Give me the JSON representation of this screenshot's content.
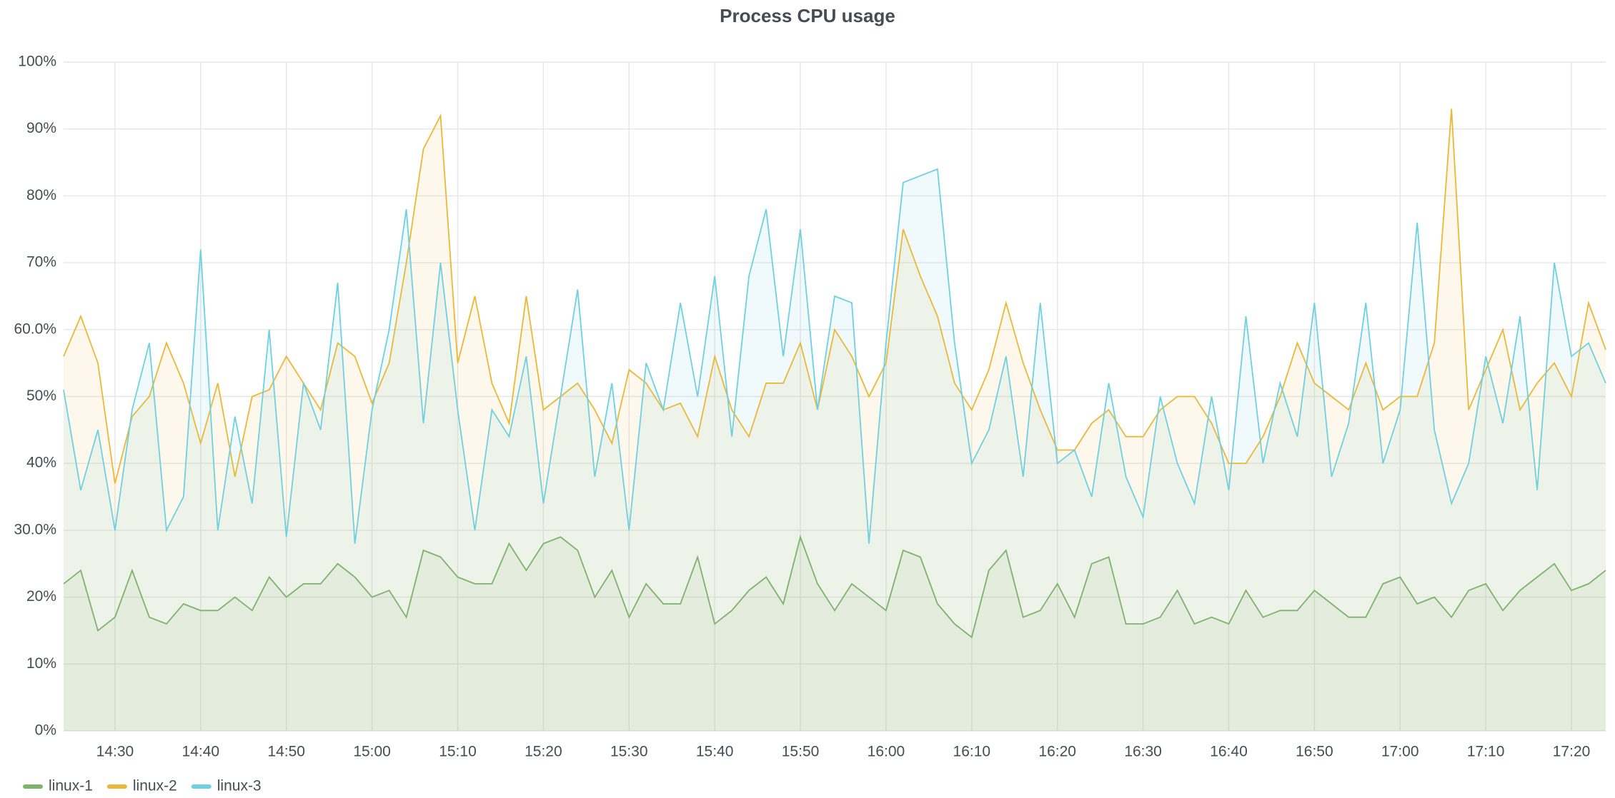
{
  "chart_data": {
    "type": "line",
    "title": "Process CPU usage",
    "x": [
      "14:24",
      "14:26",
      "14:28",
      "14:30",
      "14:32",
      "14:34",
      "14:36",
      "14:38",
      "14:40",
      "14:42",
      "14:44",
      "14:46",
      "14:48",
      "14:50",
      "14:52",
      "14:54",
      "14:56",
      "14:58",
      "15:00",
      "15:02",
      "15:04",
      "15:06",
      "15:08",
      "15:10",
      "15:12",
      "15:14",
      "15:16",
      "15:18",
      "15:20",
      "15:22",
      "15:24",
      "15:26",
      "15:28",
      "15:30",
      "15:32",
      "15:34",
      "15:36",
      "15:38",
      "15:40",
      "15:42",
      "15:44",
      "15:46",
      "15:48",
      "15:50",
      "15:52",
      "15:54",
      "15:56",
      "15:58",
      "16:00",
      "16:02",
      "16:04",
      "16:06",
      "16:08",
      "16:10",
      "16:12",
      "16:14",
      "16:16",
      "16:18",
      "16:20",
      "16:22",
      "16:24",
      "16:26",
      "16:28",
      "16:30",
      "16:32",
      "16:34",
      "16:36",
      "16:38",
      "16:40",
      "16:42",
      "16:44",
      "16:46",
      "16:48",
      "16:50",
      "16:52",
      "16:54",
      "16:56",
      "16:58",
      "17:00",
      "17:02",
      "17:04",
      "17:06",
      "17:08",
      "17:10",
      "17:12",
      "17:14",
      "17:16",
      "17:18",
      "17:20",
      "17:22",
      "17:24"
    ],
    "series": [
      {
        "name": "linux-1",
        "color": "#7eb26d",
        "values": [
          22,
          24,
          15,
          17,
          24,
          17,
          16,
          19,
          18,
          18,
          20,
          18,
          23,
          20,
          22,
          22,
          25,
          23,
          20,
          21,
          17,
          27,
          26,
          23,
          22,
          22,
          28,
          24,
          28,
          29,
          27,
          20,
          24,
          17,
          22,
          19,
          19,
          26,
          16,
          18,
          21,
          23,
          19,
          29,
          22,
          18,
          22,
          20,
          18,
          27,
          26,
          19,
          16,
          14,
          24,
          27,
          17,
          18,
          22,
          17,
          25,
          26,
          16,
          16,
          17,
          21,
          16,
          17,
          16,
          21,
          17,
          18,
          18,
          21,
          19,
          17,
          17,
          22,
          23,
          19,
          20,
          17,
          21,
          22,
          18,
          21,
          23,
          25,
          21,
          22,
          24
        ]
      },
      {
        "name": "linux-2",
        "color": "#eab839",
        "values": [
          56,
          62,
          55,
          37,
          47,
          50,
          58,
          52,
          43,
          52,
          38,
          50,
          51,
          56,
          52,
          48,
          58,
          56,
          49,
          55,
          70,
          87,
          92,
          55,
          65,
          52,
          46,
          65,
          48,
          50,
          52,
          48,
          43,
          54,
          52,
          48,
          49,
          44,
          56,
          48,
          44,
          52,
          52,
          58,
          48,
          60,
          56,
          50,
          55,
          75,
          68,
          62,
          52,
          48,
          54,
          64,
          55,
          48,
          42,
          42,
          46,
          48,
          44,
          44,
          48,
          50,
          50,
          46,
          40,
          40,
          44,
          50,
          58,
          52,
          50,
          48,
          55,
          48,
          50,
          50,
          58,
          93,
          48,
          54,
          60,
          48,
          52,
          55,
          50,
          64,
          57
        ]
      },
      {
        "name": "linux-3",
        "color": "#6ed0e0",
        "values": [
          51,
          36,
          45,
          30,
          48,
          58,
          30,
          35,
          72,
          30,
          47,
          34,
          60,
          29,
          52,
          45,
          67,
          28,
          48,
          60,
          78,
          46,
          70,
          48,
          30,
          48,
          44,
          56,
          34,
          50,
          66,
          38,
          52,
          30,
          55,
          48,
          64,
          50,
          68,
          44,
          68,
          78,
          56,
          75,
          48,
          65,
          64,
          28,
          58,
          82,
          83,
          84,
          58,
          40,
          45,
          56,
          38,
          64,
          40,
          42,
          35,
          52,
          38,
          32,
          50,
          40,
          34,
          50,
          36,
          62,
          40,
          52,
          44,
          64,
          38,
          46,
          64,
          40,
          48,
          76,
          45,
          34,
          40,
          56,
          46,
          62,
          36,
          70,
          56,
          58,
          52
        ]
      }
    ],
    "xlim": [
      "14:24",
      "17:24"
    ],
    "xticks": [
      "14:30",
      "14:40",
      "14:50",
      "15:00",
      "15:10",
      "15:20",
      "15:30",
      "15:40",
      "15:50",
      "16:00",
      "16:10",
      "16:20",
      "16:30",
      "16:40",
      "16:50",
      "17:00",
      "17:10",
      "17:20"
    ],
    "ylim": [
      0,
      100
    ],
    "yticks": [
      {
        "value": 0,
        "label": "0%"
      },
      {
        "value": 10,
        "label": "10%"
      },
      {
        "value": 20,
        "label": "20%"
      },
      {
        "value": 30,
        "label": "30.0%"
      },
      {
        "value": 40,
        "label": "40%"
      },
      {
        "value": 50,
        "label": "50%"
      },
      {
        "value": 60,
        "label": "60.0%"
      },
      {
        "value": 70,
        "label": "70%"
      },
      {
        "value": 80,
        "label": "80%"
      },
      {
        "value": 90,
        "label": "90%"
      },
      {
        "value": 100,
        "label": "100%"
      }
    ],
    "grid": true,
    "fill": true,
    "legend": "bottom-left"
  }
}
